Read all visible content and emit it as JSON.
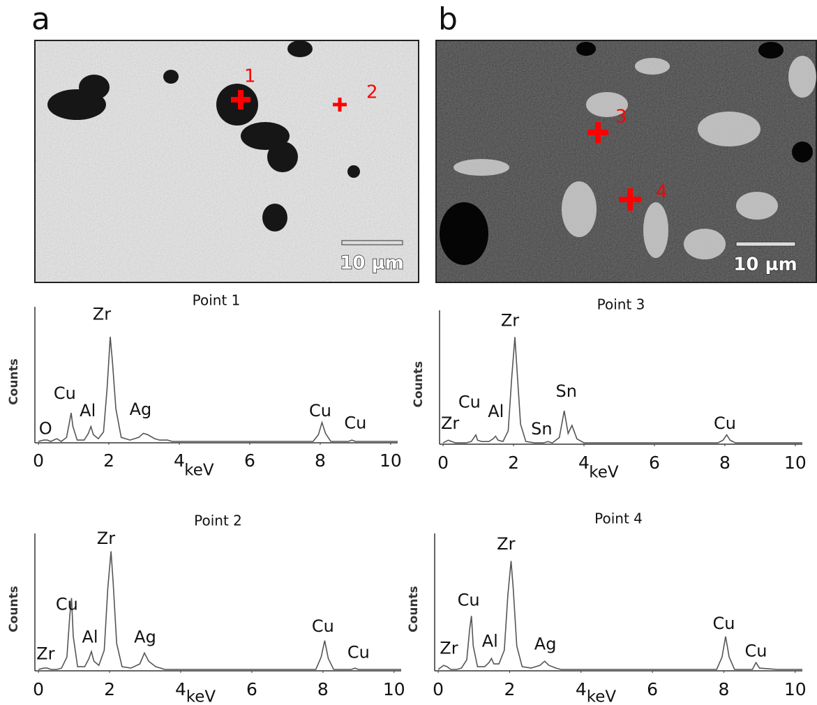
{
  "images": [
    {
      "label": "a",
      "scale_bar": "10 µm",
      "markers": [
        "1",
        "2"
      ]
    },
    {
      "label": "b",
      "scale_bar": "10 µm",
      "markers": [
        "3",
        "4"
      ]
    }
  ],
  "chart_data": [
    {
      "type": "line",
      "title": "Point 1",
      "x_label": "keV",
      "y_label": "Counts",
      "xlim": [
        -0.1,
        10.2
      ],
      "xticks": [
        0,
        2,
        4,
        6,
        8,
        10
      ],
      "ylim": [
        0,
        100
      ],
      "series": [
        {
          "color": "#555555",
          "x": [
            0,
            0.15,
            0.25,
            0.35,
            0.52,
            0.65,
            0.8,
            0.88,
            0.93,
            0.98,
            1.1,
            1.3,
            1.42,
            1.49,
            1.56,
            1.7,
            1.85,
            1.95,
            2.04,
            2.1,
            2.2,
            2.35,
            2.6,
            2.85,
            2.98,
            3.1,
            3.3,
            3.44,
            3.55,
            3.66,
            3.8,
            4.0,
            5.0,
            6.0,
            7.0,
            7.8,
            7.95,
            8.05,
            8.15,
            8.3,
            8.8,
            8.9,
            9.0,
            9.5,
            10.2
          ],
          "values": [
            1,
            2,
            2,
            1,
            3,
            1,
            4,
            15,
            22,
            12,
            2,
            2,
            7,
            12,
            6,
            3,
            8,
            40,
            78,
            60,
            25,
            4,
            2,
            4,
            7,
            6,
            3,
            2,
            2,
            2,
            1,
            1,
            1,
            1,
            1,
            1,
            6,
            15,
            7,
            1,
            1,
            2,
            1,
            1,
            1
          ]
        }
      ],
      "annotations": [
        {
          "text": "O",
          "x": 0.2,
          "y": 10
        },
        {
          "text": "Cu",
          "x": 0.75,
          "y": 36
        },
        {
          "text": "Al",
          "x": 1.4,
          "y": 23
        },
        {
          "text": "Zr",
          "x": 1.8,
          "y": 94
        },
        {
          "text": "Ag",
          "x": 2.9,
          "y": 24
        },
        {
          "text": "Cu",
          "x": 8.0,
          "y": 23
        },
        {
          "text": "Cu",
          "x": 9.0,
          "y": 14
        }
      ]
    },
    {
      "type": "line",
      "title": "Point 3",
      "x_label": "keV",
      "y_label": "Counts",
      "xlim": [
        -0.1,
        10.2
      ],
      "xticks": [
        0,
        2,
        4,
        6,
        8,
        10
      ],
      "ylim": [
        0,
        100
      ],
      "series": [
        {
          "color": "#555555",
          "x": [
            0,
            0.15,
            0.25,
            0.35,
            0.52,
            0.65,
            0.8,
            0.88,
            0.93,
            0.98,
            1.1,
            1.3,
            1.42,
            1.49,
            1.56,
            1.7,
            1.85,
            1.95,
            2.04,
            2.1,
            2.2,
            2.35,
            2.6,
            2.85,
            2.98,
            3.1,
            3.3,
            3.44,
            3.55,
            3.66,
            3.8,
            4.0,
            5.0,
            6.0,
            7.0,
            7.8,
            7.95,
            8.05,
            8.15,
            8.3,
            8.8,
            8.9,
            9.0,
            9.5,
            10.2
          ],
          "values": [
            1,
            3,
            2,
            1,
            1,
            1,
            2,
            5,
            7,
            3,
            2,
            2,
            4,
            6,
            3,
            2,
            10,
            50,
            80,
            55,
            15,
            2,
            1,
            1,
            2,
            1,
            5,
            25,
            8,
            14,
            4,
            1,
            1,
            1,
            1,
            1,
            3,
            7,
            3,
            1,
            1,
            1,
            1,
            1,
            1
          ]
        }
      ],
      "annotations": [
        {
          "text": "Zr",
          "x": 0.2,
          "y": 15
        },
        {
          "text": "Cu",
          "x": 0.75,
          "y": 31
        },
        {
          "text": "Al",
          "x": 1.5,
          "y": 24
        },
        {
          "text": "Zr",
          "x": 1.9,
          "y": 92
        },
        {
          "text": "Sn",
          "x": 2.8,
          "y": 11
        },
        {
          "text": "Sn",
          "x": 3.5,
          "y": 39
        },
        {
          "text": "Cu",
          "x": 8.0,
          "y": 15
        }
      ]
    },
    {
      "type": "line",
      "title": "Point 2",
      "x_label": "keV",
      "y_label": "Counts",
      "xlim": [
        -0.1,
        10.2
      ],
      "xticks": [
        0,
        2,
        4,
        6,
        8,
        10
      ],
      "ylim": [
        0,
        100
      ],
      "series": [
        {
          "color": "#555555",
          "x": [
            0,
            0.15,
            0.25,
            0.35,
            0.52,
            0.65,
            0.8,
            0.88,
            0.93,
            0.98,
            1.1,
            1.3,
            1.42,
            1.49,
            1.56,
            1.7,
            1.85,
            1.95,
            2.04,
            2.1,
            2.2,
            2.35,
            2.6,
            2.85,
            2.98,
            3.1,
            3.3,
            3.44,
            3.55,
            3.66,
            3.8,
            4.0,
            5.0,
            6.0,
            7.0,
            7.8,
            7.95,
            8.05,
            8.15,
            8.3,
            8.8,
            8.9,
            9.0,
            9.5,
            10.2
          ],
          "values": [
            1,
            2,
            2,
            1,
            1,
            2,
            10,
            40,
            53,
            25,
            3,
            3,
            9,
            14,
            7,
            4,
            15,
            60,
            87,
            65,
            20,
            3,
            2,
            5,
            13,
            7,
            3,
            2,
            1,
            1,
            1,
            1,
            1,
            1,
            1,
            1,
            10,
            22,
            9,
            1,
            1,
            2,
            1,
            1,
            1
          ]
        }
      ],
      "annotations": [
        {
          "text": "Zr",
          "x": 0.2,
          "y": 12
        },
        {
          "text": "Cu",
          "x": 0.8,
          "y": 48
        },
        {
          "text": "Al",
          "x": 1.45,
          "y": 24
        },
        {
          "text": "Zr",
          "x": 1.9,
          "y": 96
        },
        {
          "text": "Ag",
          "x": 3.0,
          "y": 24
        },
        {
          "text": "Cu",
          "x": 8.0,
          "y": 32
        },
        {
          "text": "Cu",
          "x": 9.0,
          "y": 13
        }
      ]
    },
    {
      "type": "line",
      "title": "Point 4",
      "x_label": "keV",
      "y_label": "Counts",
      "xlim": [
        -0.1,
        10.2
      ],
      "xticks": [
        0,
        2,
        4,
        6,
        8,
        10
      ],
      "ylim": [
        0,
        100
      ],
      "series": [
        {
          "color": "#555555",
          "x": [
            0,
            0.15,
            0.25,
            0.35,
            0.52,
            0.65,
            0.8,
            0.88,
            0.93,
            0.98,
            1.1,
            1.3,
            1.42,
            1.49,
            1.56,
            1.7,
            1.85,
            1.95,
            2.04,
            2.1,
            2.2,
            2.35,
            2.6,
            2.85,
            2.98,
            3.1,
            3.3,
            3.44,
            3.55,
            3.66,
            3.8,
            4.0,
            5.0,
            6.0,
            7.0,
            7.8,
            7.95,
            8.05,
            8.15,
            8.3,
            8.8,
            8.9,
            9.0,
            9.5,
            10.2
          ],
          "values": [
            1,
            4,
            3,
            1,
            1,
            2,
            8,
            30,
            40,
            18,
            3,
            3,
            6,
            9,
            5,
            5,
            15,
            55,
            80,
            60,
            18,
            3,
            2,
            4,
            7,
            4,
            2,
            1,
            1,
            1,
            1,
            1,
            1,
            1,
            1,
            1,
            10,
            25,
            10,
            1,
            1,
            6,
            2,
            1,
            1
          ]
        }
      ],
      "annotations": [
        {
          "text": "Zr",
          "x": 0.3,
          "y": 16
        },
        {
          "text": "Cu",
          "x": 0.85,
          "y": 51
        },
        {
          "text": "Al",
          "x": 1.45,
          "y": 21
        },
        {
          "text": "Zr",
          "x": 1.9,
          "y": 92
        },
        {
          "text": "Ag",
          "x": 3.0,
          "y": 19
        },
        {
          "text": "Cu",
          "x": 8.0,
          "y": 34
        },
        {
          "text": "Cu",
          "x": 8.9,
          "y": 14
        }
      ]
    }
  ]
}
